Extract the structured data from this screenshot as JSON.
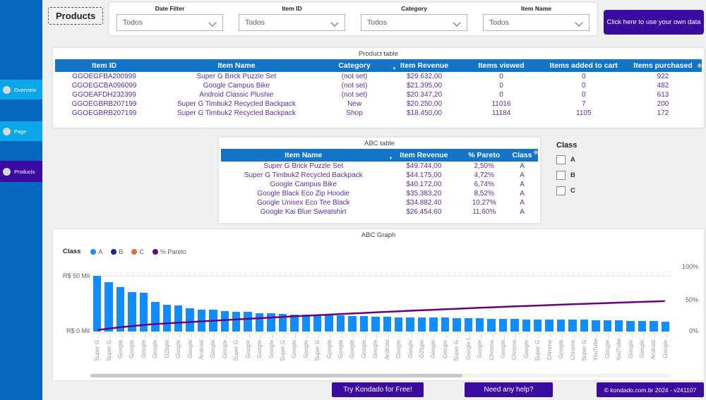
{
  "page": {
    "title": "Products"
  },
  "sidebar": {
    "items": [
      {
        "label": "Overview",
        "active": false
      },
      {
        "label": "Page",
        "active": false
      },
      {
        "label": "Products",
        "active": true
      }
    ]
  },
  "filters": {
    "groups": [
      {
        "label": "Date Filter",
        "value": "Todos"
      },
      {
        "label": "Item ID",
        "value": "Todos"
      },
      {
        "label": "Category",
        "value": "Todos"
      },
      {
        "label": "Item Name",
        "value": "Todos"
      }
    ]
  },
  "cta": {
    "label": "Click here to use your own data"
  },
  "product_table": {
    "title": "Product table",
    "columns": [
      "Item ID",
      "Item Name",
      "Category",
      "Item Revenue",
      "Items viewed",
      "Items added to cart",
      "Items purchased"
    ],
    "sorted_column": "Item Revenue",
    "rows": [
      [
        "GGOEGFBA200999",
        "Super G Brick Puzzle Set",
        "(not set)",
        "$29.632,00",
        "0",
        "0",
        "922"
      ],
      [
        "GGOEGCBA096099",
        "Google Campus Bike",
        "(not set)",
        "$21.395,00",
        "0",
        "0",
        "482"
      ],
      [
        "GGOEAFDH232399",
        "Android Classic Plushie",
        "(not set)",
        "$20.347,20",
        "0",
        "0",
        "613"
      ],
      [
        "GGOEGBRB207199",
        "Super G Timbuk2 Recycled Backpack",
        "New",
        "$20.250,00",
        "11016",
        "7",
        "200"
      ],
      [
        "GGOEGBRB207199",
        "Super G Timbuk2 Recycled Backpack",
        "Shop",
        "$18.450,00",
        "11184",
        "1105",
        "172"
      ]
    ]
  },
  "abc_table": {
    "title": "ABC table",
    "columns": [
      "Item Name",
      "Item Revenue",
      "% Pareto",
      "Class"
    ],
    "sorted_column": "Item Revenue",
    "rows": [
      [
        "Super G Brick Puzzle Set",
        "$49.744,00",
        "2,50%",
        "A"
      ],
      [
        "Super G Timbuk2 Recycled Backpack",
        "$44.175,00",
        "4,72%",
        "A"
      ],
      [
        "Google Campus Bike",
        "$40.172,00",
        "6,74%",
        "A"
      ],
      [
        "Google Black Eco Zip Hoodie",
        "$35.383,20",
        "8,52%",
        "A"
      ],
      [
        "Google Unisex Eco Tee Black",
        "$34.882,40",
        "10,27%",
        "A"
      ],
      [
        "Google Kai Blue Sweatshirt",
        "$26.454,60",
        "11,60%",
        "A"
      ]
    ]
  },
  "class_filter": {
    "title": "Class",
    "options": [
      "A",
      "B",
      "C"
    ],
    "checked": [
      false,
      false,
      false
    ]
  },
  "chart_data": {
    "type": "bar",
    "title": "ABC Graph",
    "legend": {
      "title": "Class",
      "position": "top-left",
      "entries": [
        {
          "label": "A",
          "color": "#118DFF"
        },
        {
          "label": "B",
          "color": "#12239E"
        },
        {
          "label": "C",
          "color": "#E66C37"
        },
        {
          "label": "% Pareto",
          "color": "#6B007B"
        }
      ]
    },
    "y_left": {
      "labels": [
        "R$ 50 Mil",
        "R$ 0 Mil"
      ],
      "min": 0,
      "max": 50,
      "unit": "R$ Mil"
    },
    "y_right": {
      "labels": [
        "100%",
        "50%",
        "0%"
      ],
      "min": 0,
      "max": 100,
      "unit": "%"
    },
    "grid": "dotted-horizontal",
    "categories": [
      "Super G ...",
      "Super G ...",
      "Google ...",
      "Google ...",
      "Google ...",
      "Google ...",
      "G25gle ...",
      "Google ...",
      "Google ...",
      "Android ...",
      "Google ...",
      "Google ...",
      "Super G ...",
      "Google ...",
      "Google ...",
      "Google ...",
      "Super G ...",
      "Google ...",
      "Google ...",
      "Super G ...",
      "Google ...",
      "Google ...",
      "Google ...",
      "Google ...",
      "Google ...",
      "Android ...",
      "Google ...",
      "Google ...",
      "G25gle ...",
      "Google ...",
      "Google ...",
      "Super G ...",
      "Google I...",
      "Google ...",
      "Chrome ...",
      "Google ...",
      "Chrome ...",
      "Google ...",
      "Super G ...",
      "Chrome ...",
      "Google ...",
      "Chrome ...",
      "Super G ...",
      "YouTube...",
      "Google ...",
      "YouTube...",
      "Google ...",
      "Google ...",
      "Android ...",
      "Google ..."
    ],
    "series": [
      {
        "name": "Item Revenue (R$ Mil)",
        "type": "bar",
        "class": "A",
        "color": "#118DFF",
        "values": [
          49.74,
          44.18,
          40.17,
          35.38,
          34.88,
          26.45,
          24,
          23.5,
          21,
          19.5,
          19.5,
          18.5,
          17.5,
          17.5,
          16.5,
          16.5,
          16,
          15.5,
          15.5,
          15,
          14.5,
          14.5,
          14,
          14,
          13.5,
          13.5,
          13,
          13,
          12.5,
          12.5,
          12.5,
          12,
          12,
          12,
          11.5,
          11.5,
          11.5,
          11,
          11,
          11,
          10.5,
          10.5,
          10.5,
          10,
          10,
          10,
          9.5,
          9.5,
          9.5,
          9
        ]
      },
      {
        "name": "% Pareto",
        "type": "line",
        "color": "#6B007B",
        "values": [
          2.5,
          4.72,
          6.74,
          8.52,
          10.27,
          11.6,
          12.65,
          13.69,
          14.72,
          15.74,
          16.74,
          17.73,
          18.71,
          19.68,
          20.64,
          21.59,
          22.52,
          23.44,
          24.35,
          25.25,
          26.14,
          27.02,
          27.88,
          28.73,
          29.57,
          30.4,
          31.22,
          32.03,
          32.82,
          33.6,
          34.37,
          35.13,
          35.88,
          36.62,
          37.35,
          38.06,
          38.76,
          39.45,
          40.13,
          40.8,
          41.46,
          42.1,
          42.73,
          43.35,
          43.96,
          44.56,
          45.15,
          45.72,
          46.28,
          46.83
        ]
      }
    ]
  },
  "footer": {
    "try_label": "Try Kondado for Free!",
    "help_label": "Need any help?",
    "copyright": "© kondado.com.br 2024 - v241107"
  },
  "colors": {
    "sidebar": "#0667BE",
    "sidebar_item": "#0BA7E8",
    "accent_purple": "#3B0AA0",
    "table_header": "#1374C8",
    "table_text": "#5C2E9E",
    "bar_blue": "#118DFF",
    "pareto_line": "#6B007B"
  }
}
